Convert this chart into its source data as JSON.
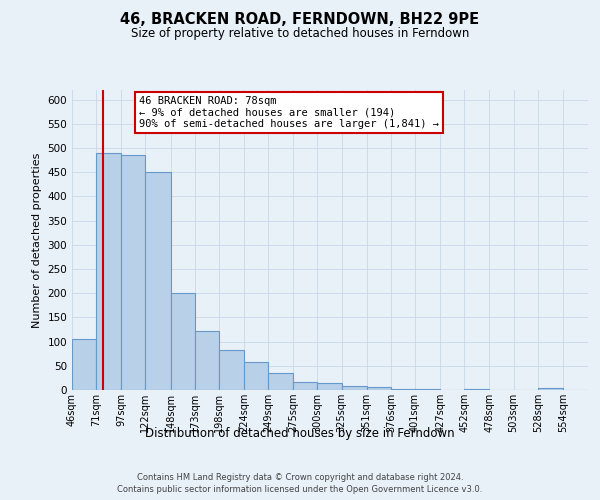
{
  "title": "46, BRACKEN ROAD, FERNDOWN, BH22 9PE",
  "subtitle": "Size of property relative to detached houses in Ferndown",
  "xlabel": "Distribution of detached houses by size in Ferndown",
  "ylabel": "Number of detached properties",
  "bin_labels": [
    "46sqm",
    "71sqm",
    "97sqm",
    "122sqm",
    "148sqm",
    "173sqm",
    "198sqm",
    "224sqm",
    "249sqm",
    "275sqm",
    "300sqm",
    "325sqm",
    "351sqm",
    "376sqm",
    "401sqm",
    "427sqm",
    "452sqm",
    "478sqm",
    "503sqm",
    "528sqm",
    "554sqm"
  ],
  "bin_edges": [
    46,
    71,
    97,
    122,
    148,
    173,
    198,
    224,
    249,
    275,
    300,
    325,
    351,
    376,
    401,
    427,
    452,
    478,
    503,
    528,
    554,
    580
  ],
  "bar_heights": [
    105,
    490,
    485,
    450,
    200,
    122,
    82,
    57,
    35,
    16,
    14,
    8,
    6,
    3,
    3,
    0,
    3,
    0,
    0,
    5,
    0
  ],
  "bar_color": "#b8d0e8",
  "bar_edge_color": "#6699cc",
  "bar_linewidth": 0.8,
  "vline_x": 78,
  "vline_color": "#cc0000",
  "ylim": [
    0,
    620
  ],
  "yticks": [
    0,
    50,
    100,
    150,
    200,
    250,
    300,
    350,
    400,
    450,
    500,
    550,
    600
  ],
  "annotation_title": "46 BRACKEN ROAD: 78sqm",
  "annotation_line1": "← 9% of detached houses are smaller (194)",
  "annotation_line2": "90% of semi-detached houses are larger (1,841) →",
  "annotation_box_color": "#ffffff",
  "annotation_box_edge": "#cc0000",
  "grid_color": "#c8d8ec",
  "bg_color": "#e8f0f8",
  "footnote1": "Contains HM Land Registry data © Crown copyright and database right 2024.",
  "footnote2": "Contains public sector information licensed under the Open Government Licence v3.0."
}
